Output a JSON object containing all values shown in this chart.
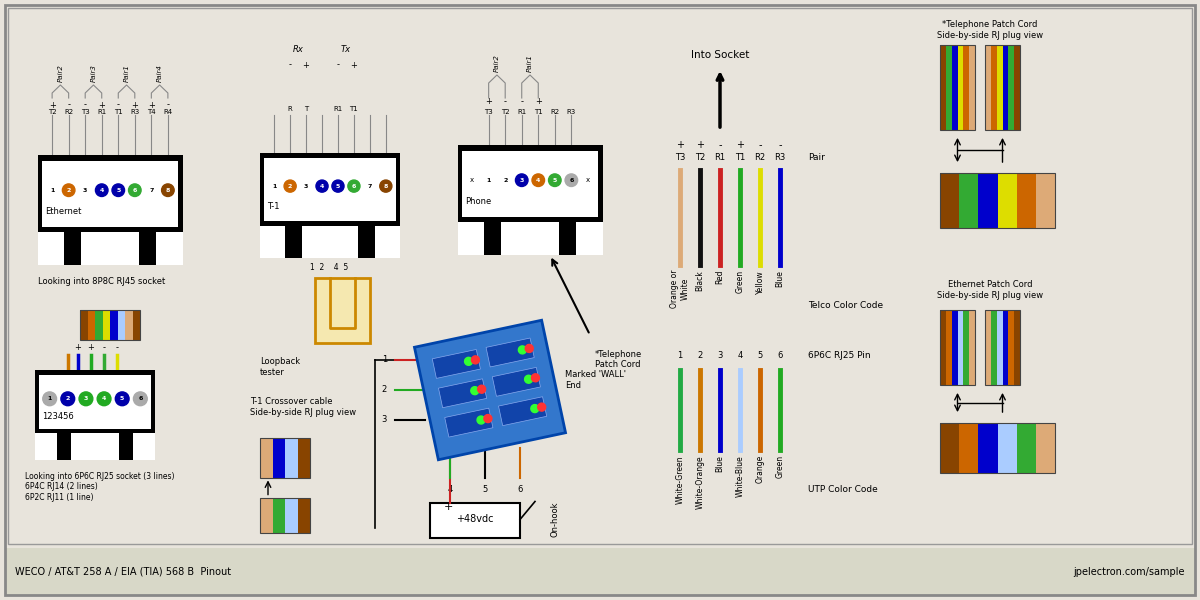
{
  "bg_color": "#e8e4dc",
  "border_color": "#888888",
  "title_text": "WECO / AT&T 258 A / EIA (TIA) 568 B  Pinout",
  "website_text": "jpelectron.com/sample",
  "eth_pin_dot_colors": [
    "#ffffff",
    "#cc6600",
    "#ffffff",
    "#0000aa",
    "#0000aa",
    "#33aa33",
    "#ffffff",
    "#884400"
  ],
  "t1_pin_dot_colors": [
    "#ffffff",
    "#cc6600",
    "#ffffff",
    "#0000aa",
    "#0000aa",
    "#33aa33",
    "#ffffff",
    "#884400"
  ],
  "phone_pin_dot_colors": [
    "#aaaaaa",
    "#ffffff",
    "#ffffff",
    "#0000aa",
    "#cc6600",
    "#33aa33",
    "#aaaaaa",
    "#aaaaaa"
  ],
  "telco_colors": [
    "#ddaa77",
    "#111111",
    "#cc2222",
    "#22aa22",
    "#dddd00",
    "#0000cc"
  ],
  "telco_labels": [
    "Orange or\nWhite",
    "Black",
    "Red",
    "Green",
    "Yellow",
    "Blue"
  ],
  "utp_colors": [
    "#22aa44",
    "#cc7700",
    "#0000cc",
    "#aaccff",
    "#cc6600",
    "#22aa22"
  ],
  "utp_labels": [
    "White-Green",
    "White-Orange",
    "Blue",
    "White-Blue",
    "Orange",
    "Green"
  ],
  "pair_labels_top": [
    "T3",
    "T2",
    "R1",
    "T1",
    "R2",
    "R3"
  ],
  "pair_signs": [
    "+",
    "+",
    "-",
    "+",
    "-",
    "-"
  ],
  "pin_numbers_6p": [
    "1",
    "2",
    "3",
    "4",
    "5",
    "6"
  ],
  "rj25_pin_label": "6P6C RJ25 Pin",
  "telco_label": "Telco Color Code",
  "utp_label": "UTP Color Code",
  "pair_label": "Pair",
  "into_socket": "Into Socket",
  "tel_patch_title": "*Telephone Patch Cord\nSide-by-side RJ plug view",
  "eth_patch_title": "Ethernet Patch Cord\nSide-by-side RJ plug view",
  "tel_patch_colors_L": [
    "#884400",
    "#33aa33",
    "#0000cc",
    "#dddd00",
    "#cc6600",
    "#ddaa77"
  ],
  "tel_patch_colors_R": [
    "#ddaa77",
    "#cc6600",
    "#dddd00",
    "#0000cc",
    "#33aa33",
    "#884400"
  ],
  "eth_patch_colors_L": [
    "#884400",
    "#cc6600",
    "#0000cc",
    "#aaccff",
    "#33aa33",
    "#ddaa77"
  ],
  "eth_patch_colors_R": [
    "#ddaa77",
    "#33aa33",
    "#aaccff",
    "#0000cc",
    "#cc6600",
    "#884400"
  ],
  "crossover_colors_T": [
    "#ddaa77",
    "#0000cc",
    "#aaccff",
    "#884400"
  ],
  "crossover_colors_B": [
    "#ddaa77",
    "#33aa33",
    "#aaccff",
    "#884400"
  ],
  "eth_patch_small": [
    "#884400",
    "#cc6600",
    "#33aa33",
    "#dddd00",
    "#0000cc",
    "#aaccff",
    "#ddaa77",
    "#884400"
  ],
  "rj25_small_colors": [
    "#cc7700",
    "#0000cc",
    "#22aa22",
    "#33aa33",
    "#dddd00"
  ]
}
